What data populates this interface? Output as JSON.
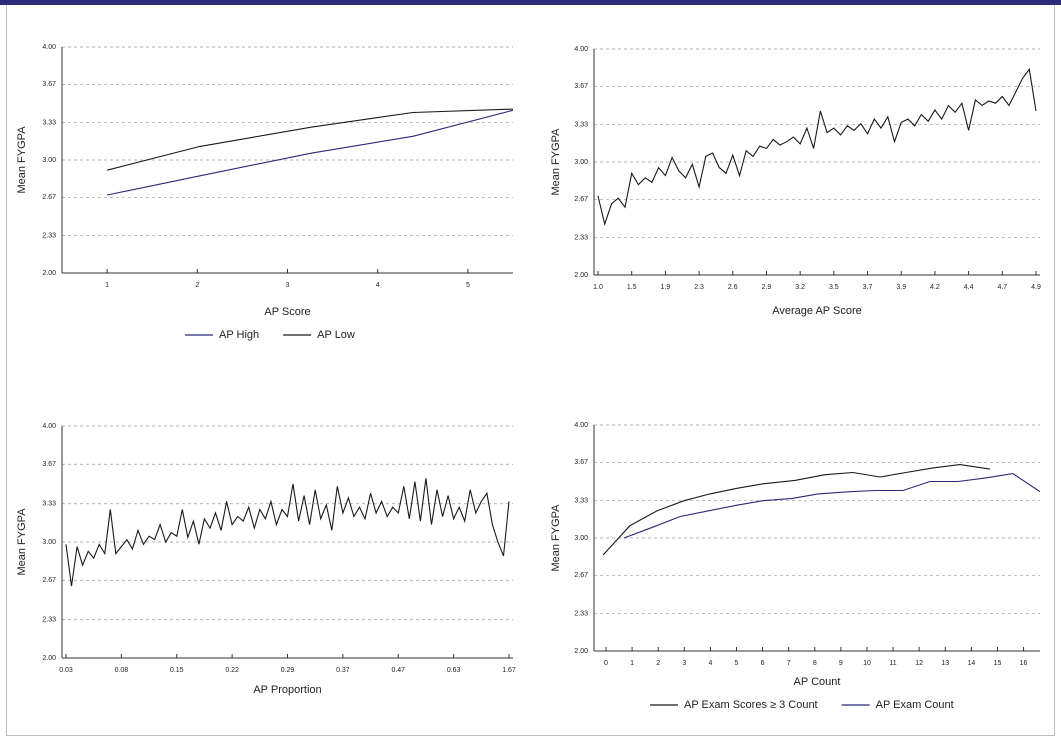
{
  "chart_data": [
    {
      "type": "line",
      "x_label": "AP Score",
      "y_label": "Mean FYGPA",
      "x": [
        1,
        2.03,
        3.26,
        4.39,
        5.5
      ],
      "series": [
        {
          "name": "AP High",
          "color": "#2b2a78",
          "values": [
            2.69,
            2.86,
            3.06,
            3.21,
            3.44
          ]
        },
        {
          "name": "AP Low",
          "color": "#1a1a1a",
          "values": [
            2.91,
            3.12,
            3.29,
            3.42,
            3.45
          ]
        }
      ],
      "xlim": [
        0.5,
        5.5
      ],
      "xticks": [
        1,
        2,
        3,
        4,
        5
      ],
      "ylim": [
        2,
        4
      ],
      "yticks": [
        {
          "value": 2,
          "label": "2.00"
        },
        2.33,
        2.67,
        {
          "value": 3,
          "label": "3.00"
        },
        3.33,
        3.67,
        {
          "value": 4,
          "label": "4.00"
        }
      ],
      "grid": true
    },
    {
      "type": "line",
      "x_label": "Average AP Score",
      "y_label": "Mean FYGPA",
      "color": "#1a1a1a",
      "categories": [
        "1.0",
        null,
        null,
        null,
        null,
        "1.5",
        null,
        null,
        null,
        null,
        "1.9",
        null,
        null,
        null,
        null,
        "2.3",
        null,
        null,
        null,
        null,
        "2.6",
        null,
        null,
        null,
        null,
        "2.9",
        null,
        null,
        null,
        null,
        "3.2",
        null,
        null,
        null,
        null,
        "3.5",
        null,
        null,
        null,
        null,
        "3.7",
        null,
        null,
        null,
        null,
        "3.9",
        null,
        null,
        null,
        null,
        "4.2",
        null,
        null,
        null,
        null,
        "4.4",
        null,
        null,
        null,
        null,
        "4.7",
        null,
        null,
        null,
        null,
        "4.9"
      ],
      "values": [
        2.7,
        2.45,
        2.63,
        2.68,
        2.6,
        2.9,
        2.8,
        2.86,
        2.82,
        2.95,
        2.88,
        3.04,
        2.92,
        2.86,
        2.98,
        2.78,
        3.05,
        3.08,
        2.95,
        2.9,
        3.06,
        2.88,
        3.1,
        3.05,
        3.14,
        3.12,
        3.2,
        3.15,
        3.18,
        3.22,
        3.16,
        3.3,
        3.12,
        3.45,
        3.26,
        3.3,
        3.24,
        3.32,
        3.28,
        3.34,
        3.25,
        3.38,
        3.3,
        3.4,
        3.18,
        3.35,
        3.38,
        3.32,
        3.42,
        3.36,
        3.46,
        3.38,
        3.5,
        3.44,
        3.52,
        3.28,
        3.55,
        3.5,
        3.54,
        3.52,
        3.58,
        3.5,
        3.62,
        3.74,
        3.82,
        3.45
      ],
      "ylim": [
        2,
        4
      ],
      "yticks": [
        {
          "value": 2,
          "label": "2.00"
        },
        2.33,
        2.67,
        {
          "value": 3,
          "label": "3.00"
        },
        3.33,
        3.67,
        {
          "value": 4,
          "label": "4.00"
        }
      ],
      "grid": true
    },
    {
      "type": "line",
      "x_label": "AP Proportion",
      "y_label": "Mean FYGPA",
      "color": "#1a1a1a",
      "categories": [
        "0.03",
        null,
        null,
        null,
        null,
        null,
        null,
        null,
        null,
        null,
        "0.08",
        null,
        null,
        null,
        null,
        null,
        null,
        null,
        null,
        null,
        "0.15",
        null,
        null,
        null,
        null,
        null,
        null,
        null,
        null,
        null,
        "0.22",
        null,
        null,
        null,
        null,
        null,
        null,
        null,
        null,
        null,
        "0.29",
        null,
        null,
        null,
        null,
        null,
        null,
        null,
        null,
        null,
        "0.37",
        null,
        null,
        null,
        null,
        null,
        null,
        null,
        null,
        null,
        "0.47",
        null,
        null,
        null,
        null,
        null,
        null,
        null,
        null,
        null,
        "0.63",
        null,
        null,
        null,
        null,
        null,
        null,
        null,
        null,
        null,
        "1.67"
      ],
      "values": [
        2.98,
        2.62,
        2.96,
        2.8,
        2.92,
        2.86,
        2.98,
        2.9,
        3.28,
        2.9,
        2.96,
        3.02,
        2.94,
        3.1,
        2.98,
        3.05,
        3.02,
        3.15,
        3.0,
        3.08,
        3.05,
        3.28,
        3.04,
        3.18,
        2.98,
        3.2,
        3.12,
        3.25,
        3.1,
        3.35,
        3.15,
        3.22,
        3.18,
        3.3,
        3.12,
        3.28,
        3.2,
        3.35,
        3.15,
        3.28,
        3.22,
        3.5,
        3.18,
        3.4,
        3.15,
        3.45,
        3.2,
        3.32,
        3.1,
        3.48,
        3.25,
        3.38,
        3.22,
        3.3,
        3.2,
        3.42,
        3.25,
        3.35,
        3.22,
        3.3,
        3.25,
        3.48,
        3.2,
        3.52,
        3.18,
        3.55,
        3.15,
        3.45,
        3.22,
        3.4,
        3.2,
        3.3,
        3.18,
        3.45,
        3.25,
        3.35,
        3.42,
        3.15,
        3.0,
        2.88,
        3.35
      ],
      "ylim": [
        2,
        4
      ],
      "yticks": [
        {
          "value": 2,
          "label": "2.00"
        },
        2.33,
        2.67,
        {
          "value": 3,
          "label": "3.00"
        },
        3.33,
        3.67,
        {
          "value": 4,
          "label": "4.00"
        }
      ],
      "grid": true
    },
    {
      "type": "line",
      "x_label": "AP Count",
      "y_label": "Mean FYGPA",
      "series": [
        {
          "name": "AP Exam Scores ≥ 3 Count",
          "color": "#1a1a1a",
          "x": [
            -0.11,
            0.92,
            1.95,
            2.99,
            3.98,
            5.02,
            6.02,
            7.24,
            8.39,
            9.46,
            10.5,
            11.49,
            12.53,
            13.56,
            14.71
          ],
          "values": [
            2.85,
            3.11,
            3.24,
            3.33,
            3.39,
            3.44,
            3.48,
            3.51,
            3.56,
            3.58,
            3.54,
            3.58,
            3.62,
            3.65,
            3.61
          ]
        },
        {
          "name": "AP Exam Count",
          "color": "#2b2a78",
          "x": [
            0.69,
            1.84,
            2.84,
            3.91,
            5.02,
            6.02,
            7.13,
            8.12,
            9.35,
            10.34,
            11.38,
            12.41,
            13.49,
            14.52,
            15.59,
            16.63
          ],
          "values": [
            3.0,
            3.1,
            3.19,
            3.24,
            3.29,
            3.33,
            3.35,
            3.39,
            3.41,
            3.42,
            3.42,
            3.5,
            3.5,
            3.53,
            3.57,
            3.41
          ]
        }
      ],
      "xlim": [
        -0.46,
        16.63
      ],
      "xticks": [
        0,
        1,
        2,
        3,
        4,
        5,
        6,
        7,
        8,
        9,
        10,
        11,
        12,
        13,
        14,
        15,
        16
      ],
      "ylim": [
        2,
        4
      ],
      "yticks": [
        {
          "value": 2,
          "label": "2.00"
        },
        2.33,
        2.67,
        {
          "value": 3,
          "label": "3.00"
        },
        3.33,
        3.67,
        {
          "value": 4,
          "label": "4.00"
        }
      ],
      "grid": true
    }
  ]
}
